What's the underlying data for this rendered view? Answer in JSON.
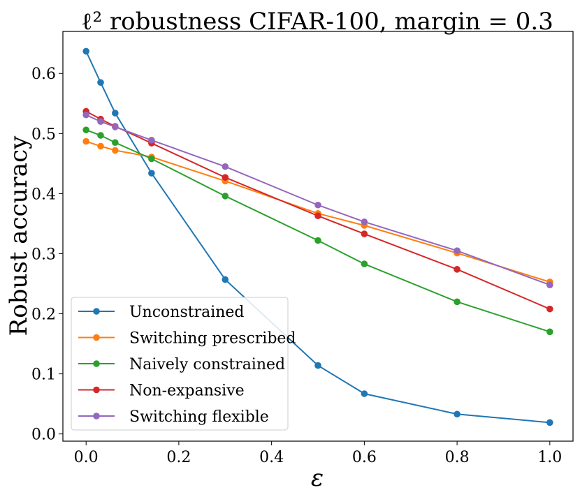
{
  "chart_data": {
    "type": "line",
    "title": "ℓ² robustness CIFAR-100, margin = 0.3",
    "xlabel": "ε",
    "ylabel": "Robust accuracy",
    "xlim": [
      -0.05,
      1.05
    ],
    "ylim": [
      -0.012,
      0.67
    ],
    "xticks": [
      0.0,
      0.2,
      0.4,
      0.6,
      0.8,
      1.0
    ],
    "xtick_labels": [
      "0.0",
      "0.2",
      "0.4",
      "0.6",
      "0.8",
      "1.0"
    ],
    "yticks": [
      0.0,
      0.1,
      0.2,
      0.3,
      0.4,
      0.5,
      0.6
    ],
    "ytick_labels": [
      "0.0",
      "0.1",
      "0.2",
      "0.3",
      "0.4",
      "0.5",
      "0.6"
    ],
    "grid": false,
    "legend_position": "lower-left",
    "x": [
      0.0,
      0.03137,
      0.06275,
      0.14118,
      0.3,
      0.5,
      0.6,
      0.8,
      1.0
    ],
    "series": [
      {
        "name": "Unconstrained",
        "color": "#1f77b4",
        "values": [
          0.637,
          0.585,
          0.534,
          0.434,
          0.257,
          0.114,
          0.067,
          0.033,
          0.019
        ]
      },
      {
        "name": "Switching prescribed",
        "color": "#ff7f0e",
        "values": [
          0.487,
          0.479,
          0.472,
          0.461,
          0.421,
          0.367,
          0.347,
          0.301,
          0.253
        ]
      },
      {
        "name": "Naively constrained",
        "color": "#2ca02c",
        "values": [
          0.506,
          0.497,
          0.485,
          0.458,
          0.396,
          0.322,
          0.283,
          0.22,
          0.17
        ]
      },
      {
        "name": "Non-expansive",
        "color": "#d62728",
        "values": [
          0.537,
          0.524,
          0.512,
          0.484,
          0.427,
          0.363,
          0.333,
          0.274,
          0.208
        ]
      },
      {
        "name": "Switching flexible",
        "color": "#9467bd",
        "values": [
          0.531,
          0.52,
          0.511,
          0.489,
          0.445,
          0.381,
          0.353,
          0.305,
          0.248
        ]
      }
    ]
  }
}
